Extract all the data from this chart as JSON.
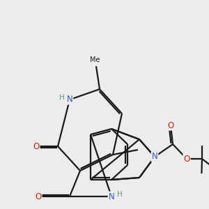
{
  "bg_color": "#ececec",
  "bond_color": "#1a1a1a",
  "n_color": "#3355cc",
  "o_color": "#cc2200",
  "h_color": "#559988",
  "lw": 1.6,
  "fs": 8.5,
  "xlim": [
    0,
    10
  ],
  "ylim": [
    0,
    10
  ]
}
